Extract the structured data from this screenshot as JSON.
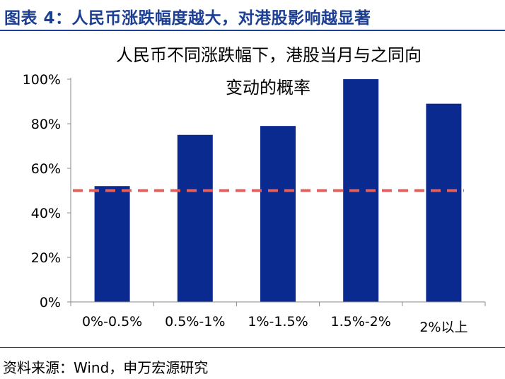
{
  "figure": {
    "title": "图表 4：人民币涨跌幅度越大，对港股影响越显著",
    "source": "资料来源：Wind，申万宏源研究"
  },
  "colors": {
    "title": "#1c3f94",
    "bar": "#0a2a8f",
    "reference_line": "#e06060",
    "rule": "#1c3f94"
  },
  "chart_data": {
    "type": "bar",
    "title_lines": [
      "人民币不同涨跌幅下，港股当月与之同向",
      "变动的概率"
    ],
    "categories": [
      "0%-0.5%",
      "0.5%-1%",
      "1%-1.5%",
      "1.5%-2%",
      "2%以上"
    ],
    "values": [
      52,
      75,
      79,
      100,
      89
    ],
    "ylim": [
      0,
      100
    ],
    "yticks": [
      0,
      20,
      40,
      60,
      80,
      100
    ],
    "ytick_labels": [
      "0%",
      "20%",
      "40%",
      "60%",
      "80%",
      "100%"
    ],
    "reference_line": 50,
    "grid": false,
    "legend": "none"
  }
}
